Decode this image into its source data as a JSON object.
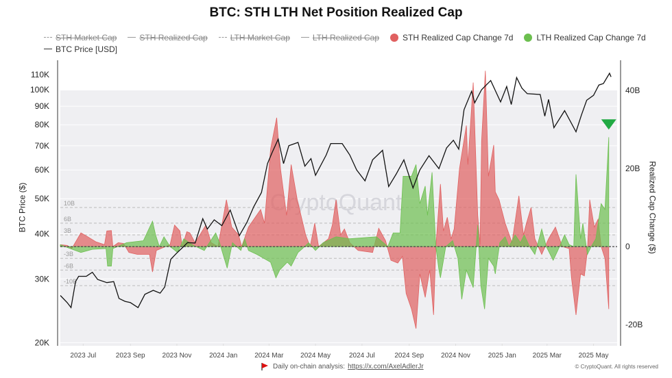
{
  "chart_data": {
    "type": "area",
    "title": "BTC: STH LTH Net Position Realized Cap",
    "left_axis": {
      "label": "BTC Price ($)",
      "scale": "log",
      "ylim": [
        19600,
        120600
      ],
      "ticks": [
        20000,
        30000,
        40000,
        50000,
        60000,
        70000,
        80000,
        90000,
        100000,
        110000
      ],
      "tick_labels": [
        "20K",
        "30K",
        "40K",
        "50K",
        "60K",
        "70K",
        "80K",
        "90K",
        "100K",
        "110K"
      ]
    },
    "right_axis": {
      "label": "Realized Cap Change ($)",
      "scale": "linear",
      "ylim": [
        -25.4,
        47.7
      ],
      "ticks": [
        -20,
        0,
        20,
        40
      ],
      "tick_labels": [
        "-20B",
        "0",
        "20B",
        "40B"
      ],
      "ref_lines": [
        -10,
        -6,
        -3,
        3,
        6,
        10
      ],
      "ref_labels": [
        "-10B",
        "-6B",
        "-3B",
        "3B",
        "6B",
        "10B"
      ]
    },
    "xlim": [
      "2023-06-01",
      "2025-06-01"
    ],
    "x_ticks": [
      "2023-07-01",
      "2023-09-01",
      "2023-11-01",
      "2024-01-01",
      "2024-03-01",
      "2024-05-01",
      "2024-07-01",
      "2024-09-01",
      "2024-11-01",
      "2025-01-01",
      "2025-03-01",
      "2025-05-01"
    ],
    "x_tick_labels": [
      "2023 Jul",
      "2023 Sep",
      "2023 Nov",
      "2024 Jan",
      "2024 Mar",
      "2024 May",
      "2024 Jul",
      "2024 Sep",
      "2024 Nov",
      "2025 Jan",
      "2025 Mar",
      "2025 May"
    ],
    "grid": true,
    "legend_position": "top",
    "legend": [
      {
        "name": "STH Market Cap",
        "style": "dash-dot",
        "hidden": true
      },
      {
        "name": "STH Realized Cap",
        "style": "line",
        "hidden": true
      },
      {
        "name": "LTH Market Cap",
        "style": "dash",
        "hidden": true
      },
      {
        "name": "LTH Realized Cap",
        "style": "line",
        "hidden": true
      },
      {
        "name": "STH Realized Cap Change 7d",
        "style": "dot",
        "color": "#e06060",
        "hidden": false
      },
      {
        "name": "LTH Realized Cap Change 7d",
        "style": "dot",
        "color": "#6cbf4f",
        "hidden": false
      },
      {
        "name": "BTC Price [USD]",
        "style": "line",
        "color": "#111111",
        "hidden": false
      }
    ],
    "series": [
      {
        "name": "STH Realized Cap Change 7d",
        "axis": "right",
        "unit": "B",
        "color": "#e06060",
        "type": "area",
        "x": [
          "2023-06-01",
          "2023-06-10",
          "2023-06-16",
          "2023-06-28",
          "2023-07-07",
          "2023-07-18",
          "2023-07-29",
          "2023-08-01",
          "2023-08-07",
          "2023-08-09",
          "2023-08-16",
          "2023-08-23",
          "2023-08-30",
          "2023-09-10",
          "2023-09-26",
          "2023-09-30",
          "2023-10-05",
          "2023-10-23",
          "2023-10-29",
          "2023-11-05",
          "2023-11-08",
          "2023-11-14",
          "2023-11-18",
          "2023-11-25",
          "2023-12-09",
          "2023-12-16",
          "2023-12-25",
          "2024-01-05",
          "2024-01-12",
          "2024-01-21",
          "2024-01-25",
          "2024-02-03",
          "2024-02-19",
          "2024-02-24",
          "2024-03-03",
          "2024-03-11",
          "2024-03-16",
          "2024-03-24",
          "2024-03-30",
          "2024-04-07",
          "2024-04-18",
          "2024-04-24",
          "2024-04-30",
          "2024-05-05",
          "2024-05-18",
          "2024-05-23",
          "2024-05-28",
          "2024-06-03",
          "2024-06-08",
          "2024-06-15",
          "2024-06-26",
          "2024-07-15",
          "2024-07-23",
          "2024-08-01",
          "2024-08-08",
          "2024-08-17",
          "2024-08-23",
          "2024-08-28",
          "2024-09-04",
          "2024-09-10",
          "2024-09-15",
          "2024-09-22",
          "2024-09-28",
          "2024-10-03",
          "2024-10-06",
          "2024-10-12",
          "2024-10-16",
          "2024-10-21",
          "2024-10-26",
          "2024-10-30",
          "2024-11-06",
          "2024-11-15",
          "2024-11-17",
          "2024-11-24",
          "2024-11-30",
          "2024-12-03",
          "2024-12-05",
          "2024-12-10",
          "2024-12-14",
          "2024-12-21",
          "2024-12-23",
          "2024-12-28",
          "2025-01-05",
          "2025-01-14",
          "2025-01-23",
          "2025-01-29",
          "2025-02-02",
          "2025-02-08",
          "2025-02-13",
          "2025-02-22",
          "2025-03-03",
          "2025-03-12",
          "2025-03-21",
          "2025-03-30",
          "2025-04-02",
          "2025-04-08",
          "2025-04-14",
          "2025-04-19",
          "2025-04-23",
          "2025-04-26",
          "2025-05-02",
          "2025-05-07",
          "2025-05-11",
          "2025-05-16",
          "2025-05-21"
        ],
        "y": [
          0.5,
          0.3,
          -0.5,
          3.5,
          2.5,
          1.2,
          0.5,
          4,
          4.1,
          0,
          1,
          0.8,
          -1.5,
          -2,
          -2,
          -6.5,
          -1,
          0.5,
          5.5,
          4,
          0,
          3.8,
          3.5,
          1,
          5.5,
          1,
          0,
          12,
          5,
          3,
          0,
          5,
          9.5,
          6,
          25,
          33,
          20,
          8,
          21,
          12,
          3,
          0,
          6,
          0,
          2,
          5.5,
          12,
          3,
          4.5,
          1,
          -1,
          -1.5,
          4.7,
          1.5,
          -3.5,
          -4.2,
          -2.5,
          -12,
          -16,
          -21,
          -7,
          -13,
          -6,
          -17.5,
          0,
          16,
          4,
          7.5,
          2,
          4.5,
          20,
          31,
          21,
          42,
          8,
          0.5,
          27,
          45,
          18,
          26,
          14,
          12,
          6,
          1,
          13,
          3,
          6,
          10,
          2,
          -2,
          2,
          5,
          0,
          -0.5,
          -8,
          -17.5,
          -7,
          -7.5,
          -1,
          12,
          5,
          7,
          0,
          -3,
          -16
        ]
      },
      {
        "name": "LTH Realized Cap Change 7d",
        "axis": "right",
        "unit": "B",
        "color": "#6cbf4f",
        "type": "area",
        "x": [
          "2023-06-01",
          "2023-06-11",
          "2023-06-28",
          "2023-07-13",
          "2023-07-31",
          "2023-08-02",
          "2023-08-07",
          "2023-08-09",
          "2023-08-27",
          "2023-09-18",
          "2023-09-30",
          "2023-10-04",
          "2023-10-09",
          "2023-10-15",
          "2023-10-23",
          "2023-11-02",
          "2023-11-10",
          "2023-11-21",
          "2023-12-07",
          "2023-12-22",
          "2023-12-27",
          "2024-01-06",
          "2024-01-13",
          "2024-01-24",
          "2024-01-29",
          "2024-02-03",
          "2024-02-14",
          "2024-03-03",
          "2024-03-10",
          "2024-03-15",
          "2024-03-25",
          "2024-03-30",
          "2024-04-08",
          "2024-04-14",
          "2024-04-22",
          "2024-05-01",
          "2024-05-11",
          "2024-05-28",
          "2024-06-15",
          "2024-07-20",
          "2024-08-04",
          "2024-08-11",
          "2024-08-20",
          "2024-08-24",
          "2024-09-04",
          "2024-09-10",
          "2024-09-15",
          "2024-09-22",
          "2024-09-25",
          "2024-10-01",
          "2024-10-06",
          "2024-10-10",
          "2024-10-12",
          "2024-10-19",
          "2024-10-28",
          "2024-11-04",
          "2024-11-09",
          "2024-11-15",
          "2024-11-24",
          "2024-11-30",
          "2024-12-04",
          "2024-12-09",
          "2024-12-14",
          "2024-12-21",
          "2024-12-23",
          "2024-12-29",
          "2025-01-05",
          "2025-01-10",
          "2025-01-18",
          "2025-01-25",
          "2025-01-30",
          "2025-02-06",
          "2025-02-13",
          "2025-02-22",
          "2025-02-28",
          "2025-03-09",
          "2025-03-15",
          "2025-03-24",
          "2025-03-30",
          "2025-04-05",
          "2025-04-08",
          "2025-04-14",
          "2025-04-17",
          "2025-04-23",
          "2025-04-28",
          "2025-05-04",
          "2025-05-11",
          "2025-05-16",
          "2025-05-21"
        ],
        "y": [
          0.5,
          -0.3,
          -1.5,
          -0.7,
          -0.5,
          -5,
          -5,
          -0.5,
          1,
          1.5,
          6.5,
          3,
          0,
          2.5,
          0,
          -1.5,
          2,
          0.5,
          -1,
          3.5,
          1,
          -5.5,
          1,
          -1,
          2,
          -1,
          -2,
          -4,
          -8,
          -6,
          -4,
          -5,
          -1.5,
          -0.5,
          1,
          -1,
          1,
          2.5,
          2,
          2.5,
          0,
          3.5,
          3.5,
          18,
          18,
          21,
          11,
          15.5,
          8,
          19,
          0,
          -6,
          -8,
          0,
          1.5,
          -3,
          -13.5,
          -6,
          -10.5,
          5.5,
          -10,
          -16,
          -3,
          -5,
          -7,
          1,
          2.5,
          0,
          3,
          1,
          3,
          0,
          -2,
          4.5,
          0,
          -3.5,
          -1,
          3,
          0.5,
          0,
          18.5,
          2,
          6,
          -2,
          0,
          2,
          11,
          9.5,
          28
        ]
      },
      {
        "name": "BTC Price [USD]",
        "axis": "left",
        "color": "#111111",
        "type": "line",
        "x": [
          "2023-06-01",
          "2023-06-10",
          "2023-06-15",
          "2023-06-21",
          "2023-06-25",
          "2023-07-05",
          "2023-07-13",
          "2023-07-20",
          "2023-08-01",
          "2023-08-10",
          "2023-08-17",
          "2023-08-25",
          "2023-09-01",
          "2023-09-11",
          "2023-09-20",
          "2023-10-01",
          "2023-10-10",
          "2023-10-16",
          "2023-10-24",
          "2023-11-01",
          "2023-11-09",
          "2023-11-15",
          "2023-11-25",
          "2023-12-05",
          "2023-12-11",
          "2023-12-20",
          "2023-12-30",
          "2024-01-10",
          "2024-01-22",
          "2024-02-01",
          "2024-02-10",
          "2024-02-20",
          "2024-02-28",
          "2024-03-05",
          "2024-03-13",
          "2024-03-20",
          "2024-03-27",
          "2024-04-08",
          "2024-04-17",
          "2024-04-25",
          "2024-05-01",
          "2024-05-15",
          "2024-05-21",
          "2024-06-05",
          "2024-06-15",
          "2024-06-24",
          "2024-07-05",
          "2024-07-15",
          "2024-07-28",
          "2024-08-05",
          "2024-08-15",
          "2024-08-25",
          "2024-09-06",
          "2024-09-15",
          "2024-09-27",
          "2024-10-10",
          "2024-10-20",
          "2024-10-29",
          "2024-11-05",
          "2024-11-12",
          "2024-11-22",
          "2024-11-26",
          "2024-12-05",
          "2024-12-17",
          "2024-12-30",
          "2025-01-07",
          "2025-01-13",
          "2025-01-20",
          "2025-01-27",
          "2025-02-03",
          "2025-02-20",
          "2025-02-26",
          "2025-03-03",
          "2025-03-10",
          "2025-03-24",
          "2025-04-08",
          "2025-04-15",
          "2025-04-22",
          "2025-05-01",
          "2025-05-08",
          "2025-05-14",
          "2025-05-22",
          "2025-05-24"
        ],
        "y": [
          27000,
          25800,
          25000,
          29500,
          30500,
          30500,
          31300,
          29900,
          29300,
          29500,
          26500,
          26000,
          25800,
          25000,
          27200,
          27900,
          27400,
          28500,
          34000,
          35400,
          36700,
          37800,
          37700,
          44000,
          41200,
          43700,
          42100,
          46500,
          39500,
          43000,
          47500,
          52000,
          62500,
          67000,
          73000,
          62500,
          70000,
          71500,
          61500,
          64500,
          58000,
          66000,
          71000,
          71000,
          66000,
          60000,
          56000,
          64000,
          68000,
          54000,
          58500,
          64000,
          53500,
          60000,
          65700,
          60500,
          69000,
          72500,
          68500,
          88000,
          99000,
          92000,
          100000,
          106000,
          92500,
          102000,
          91000,
          108000,
          101000,
          97500,
          97000,
          84500,
          94000,
          78500,
          87500,
          76500,
          85000,
          93500,
          96500,
          103000,
          104000,
          111000,
          108500
        ]
      }
    ],
    "annotations": [
      {
        "type": "marker",
        "shape": "triangle-down",
        "color": "#22aa44",
        "x": "2025-05-21",
        "y": 31
      }
    ],
    "watermark": "CryptoQuant"
  },
  "footer": {
    "text": "Daily on-chain analysis:",
    "link": "https://x.com/AxelAdlerJr",
    "copyright": "© CryptoQuant. All rights reserved"
  }
}
